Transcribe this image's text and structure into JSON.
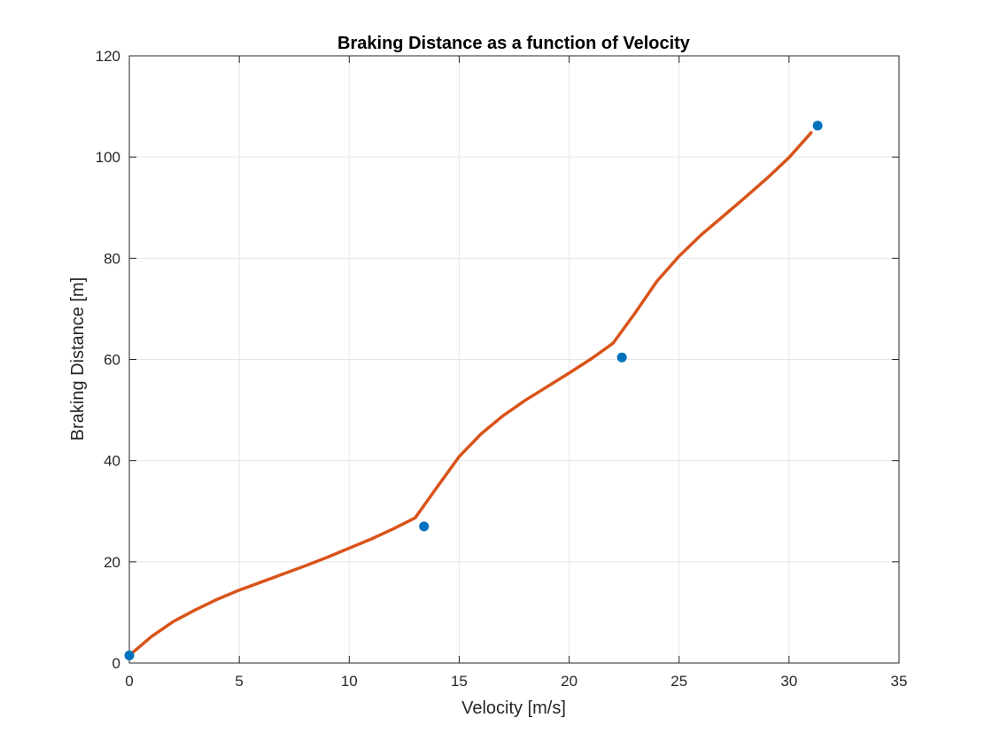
{
  "chart_data": {
    "type": "line",
    "title": "Braking Distance as a function of Velocity",
    "xlabel": "Velocity [m/s]",
    "ylabel": "Braking Distance [m]",
    "xlim": [
      0,
      35
    ],
    "ylim": [
      0,
      120
    ],
    "xticks": [
      0,
      5,
      10,
      15,
      20,
      25,
      30,
      35
    ],
    "yticks": [
      0,
      20,
      40,
      60,
      80,
      100,
      120
    ],
    "xtick_labels": [
      "0",
      "5",
      "10",
      "15",
      "20",
      "25",
      "30",
      "35"
    ],
    "ytick_labels": [
      "0",
      "20",
      "40",
      "60",
      "80",
      "100",
      "120"
    ],
    "grid": true,
    "legend": "none",
    "series": [
      {
        "style": "markers",
        "color": "#0072BD",
        "x": [
          0,
          13.4,
          22.4,
          31.3
        ],
        "y": [
          1.5,
          27,
          60.4,
          106.2
        ]
      },
      {
        "style": "line",
        "color": "#D95319",
        "x": [
          0,
          1,
          2,
          3,
          4,
          5,
          6,
          7,
          8,
          9,
          10,
          11,
          12,
          13,
          14,
          15,
          16,
          17,
          18,
          19,
          20,
          21,
          22,
          23,
          24,
          25,
          26,
          27,
          28,
          29,
          30,
          31
        ],
        "y": [
          1.5,
          5.2,
          8.2,
          10.5,
          12.6,
          14.4,
          16.0,
          17.6,
          19.2,
          20.9,
          22.7,
          24.5,
          26.5,
          28.7,
          34.8,
          40.8,
          45.3,
          48.9,
          51.9,
          54.6,
          57.3,
          60.1,
          63.2,
          69.2,
          75.5,
          80.4,
          84.6,
          88.3,
          92.0,
          95.8,
          99.9,
          104.8
        ]
      }
    ]
  }
}
